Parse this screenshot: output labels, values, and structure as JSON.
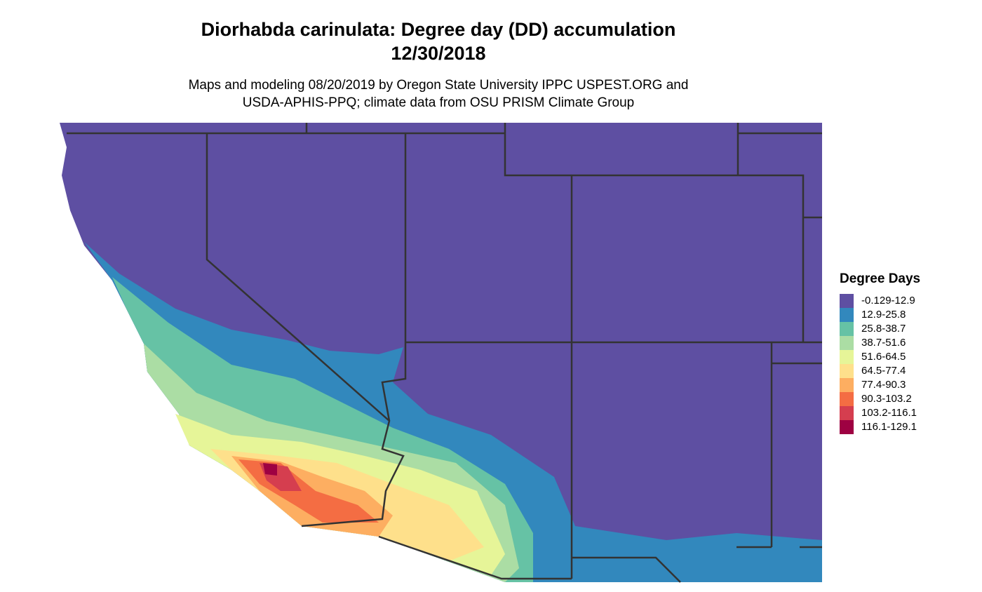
{
  "header": {
    "title": "Diorhabda carinulata: Degree day (DD) accumulation",
    "date": "12/30/2018",
    "subtitle_lines": [
      "Maps and modeling 08/20/2019 by Oregon State University IPPC USPEST.ORG and",
      "USDA-APHIS-PPQ; climate data from OSU PRISM Climate Group"
    ]
  },
  "legend": {
    "title": "Degree Days",
    "items": [
      {
        "label": "-0.129-12.9",
        "color": "#5e4fa2"
      },
      {
        "label": "12.9-25.8",
        "color": "#3288bd"
      },
      {
        "label": "25.8-38.7",
        "color": "#66c2a5"
      },
      {
        "label": "38.7-51.6",
        "color": "#abdda4"
      },
      {
        "label": "51.6-64.5",
        "color": "#e6f598"
      },
      {
        "label": "64.5-77.4",
        "color": "#fee08b"
      },
      {
        "label": "77.4-90.3",
        "color": "#fdae61"
      },
      {
        "label": "90.3-103.2",
        "color": "#f46d43"
      },
      {
        "label": "103.2-116.1",
        "color": "#d53e4f"
      },
      {
        "label": "116.1-129.1",
        "color": "#9e0142"
      }
    ]
  }
}
